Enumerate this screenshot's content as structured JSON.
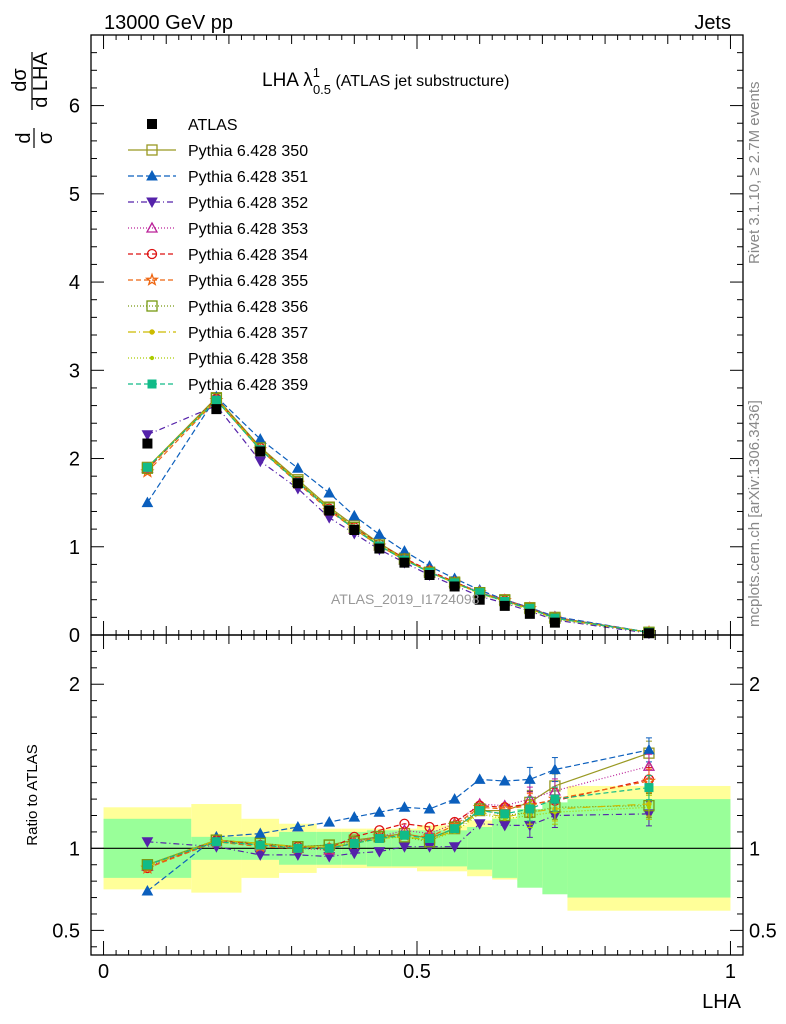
{
  "header": {
    "left": "13000 GeV pp",
    "right": "Jets"
  },
  "side_labels": {
    "rivet": "Rivet 3.1.10, ≥ 2.7M events",
    "mcplots": "mcplots.cern.ch [arXiv:1306.3436]"
  },
  "watermark": "ATLAS_2019_I1724098",
  "chart_data": {
    "type": "scatter",
    "title": {
      "main": "LHA λ",
      "sup": "1",
      "sub": "0.5",
      "rest": " (ATLAS jet substructure)"
    },
    "xlabel": "LHA",
    "ylabel": {
      "pre": "d",
      "pre_den": "σ",
      "num": "dσ",
      "den": "d LHA"
    },
    "ratio_ylabel": "Ratio to ATLAS",
    "xlim": [
      -0.02,
      1.02
    ],
    "ylim": [
      0,
      6.8
    ],
    "ratio_ylim": [
      0.35,
      2.3
    ],
    "x_ticks": [
      "0",
      "0.5",
      "1"
    ],
    "x_tick_values": [
      0,
      0.5,
      1
    ],
    "y_ticks": [
      "0",
      "1",
      "2",
      "3",
      "4",
      "5",
      "6"
    ],
    "y_tick_values": [
      0,
      1,
      2,
      3,
      4,
      5,
      6
    ],
    "ratio_ticks": [
      "0.5",
      "1",
      "2"
    ],
    "ratio_tick_values": [
      0.5,
      1,
      2
    ],
    "x": [
      0.07,
      0.18,
      0.25,
      0.31,
      0.36,
      0.4,
      0.44,
      0.48,
      0.52,
      0.56,
      0.6,
      0.64,
      0.68,
      0.72,
      0.87
    ],
    "bin_edges": [
      0.0,
      0.14,
      0.22,
      0.28,
      0.34,
      0.38,
      0.42,
      0.46,
      0.5,
      0.54,
      0.58,
      0.62,
      0.66,
      0.7,
      0.74,
      1.0
    ],
    "data": {
      "name": "ATLAS",
      "values": [
        2.17,
        2.56,
        2.08,
        1.72,
        1.41,
        1.19,
        0.98,
        0.82,
        0.68,
        0.55,
        0.4,
        0.33,
        0.24,
        0.14,
        0.02
      ]
    },
    "uncertainty_bands": {
      "inner": [
        0.18,
        0.07,
        0.07,
        0.1,
        0.1,
        0.1,
        0.11,
        0.11,
        0.11,
        0.11,
        0.13,
        0.18,
        0.24,
        0.28,
        0.3
      ],
      "outer": [
        0.25,
        0.27,
        0.18,
        0.15,
        0.12,
        0.12,
        0.12,
        0.12,
        0.14,
        0.14,
        0.17,
        0.19,
        0.2,
        0.23,
        0.38
      ],
      "inner_color": "#99ff99",
      "outer_color": "#ffff99"
    },
    "series": [
      {
        "name": "Pythia 6.428 350",
        "color": "#999922",
        "marker": "square-open",
        "dash": "solid",
        "values": [
          1.9,
          2.69,
          2.13,
          1.76,
          1.45,
          1.24,
          1.04,
          0.87,
          0.71,
          0.6,
          0.48,
          0.4,
          0.31,
          0.2,
          0.03
        ],
        "ratio": [
          0.9,
          1.05,
          1.03,
          1.01,
          1.02,
          1.05,
          1.07,
          1.09,
          1.06,
          1.12,
          1.23,
          1.23,
          1.28,
          1.38,
          1.58
        ]
      },
      {
        "name": "Pythia 6.428 351",
        "color": "#0b5fbd",
        "marker": "triangle-up",
        "dash": "6,3",
        "values": [
          1.5,
          2.7,
          2.22,
          1.89,
          1.61,
          1.35,
          1.14,
          0.95,
          0.78,
          0.64,
          0.51,
          0.4,
          0.31,
          0.21,
          0.03
        ],
        "ratio": [
          0.74,
          1.07,
          1.09,
          1.13,
          1.16,
          1.19,
          1.22,
          1.25,
          1.24,
          1.3,
          1.42,
          1.41,
          1.42,
          1.48,
          1.6
        ]
      },
      {
        "name": "Pythia 6.428 352",
        "color": "#5522aa",
        "marker": "triangle-down",
        "dash": "6,3,1,3",
        "values": [
          2.27,
          2.6,
          1.97,
          1.66,
          1.33,
          1.15,
          0.97,
          0.82,
          0.68,
          0.56,
          0.44,
          0.36,
          0.27,
          0.17,
          0.02
        ],
        "ratio": [
          1.04,
          1.01,
          0.96,
          0.96,
          0.95,
          0.97,
          0.98,
          1.01,
          1.01,
          1.01,
          1.15,
          1.14,
          1.14,
          1.2,
          1.21
        ]
      },
      {
        "name": "Pythia 6.428 353",
        "color": "#bb2299",
        "marker": "triangle-up-open",
        "dash": "1,2",
        "values": [
          1.89,
          2.67,
          2.1,
          1.73,
          1.42,
          1.2,
          1.01,
          0.85,
          0.72,
          0.6,
          0.49,
          0.4,
          0.31,
          0.2,
          0.03
        ],
        "ratio": [
          0.89,
          1.04,
          1.02,
          1.0,
          0.99,
          1.04,
          1.07,
          1.11,
          1.09,
          1.15,
          1.27,
          1.26,
          1.3,
          1.35,
          1.5
        ]
      },
      {
        "name": "Pythia 6.428 354",
        "color": "#dd1111",
        "marker": "circle-open",
        "dash": "5,3",
        "values": [
          1.88,
          2.68,
          2.12,
          1.74,
          1.43,
          1.22,
          1.03,
          0.87,
          0.73,
          0.6,
          0.48,
          0.39,
          0.3,
          0.19,
          0.03
        ],
        "ratio": [
          0.88,
          1.05,
          1.02,
          1.01,
          1.0,
          1.07,
          1.11,
          1.15,
          1.13,
          1.16,
          1.26,
          1.25,
          1.27,
          1.29,
          1.42
        ]
      },
      {
        "name": "Pythia 6.428 355",
        "color": "#ee6611",
        "marker": "star-open",
        "dash": "5,3",
        "values": [
          1.85,
          2.66,
          2.1,
          1.72,
          1.41,
          1.2,
          1.01,
          0.85,
          0.72,
          0.59,
          0.48,
          0.39,
          0.3,
          0.19,
          0.03
        ],
        "ratio": [
          0.88,
          1.04,
          1.01,
          1.0,
          1.0,
          1.03,
          1.07,
          1.08,
          1.07,
          1.14,
          1.25,
          1.24,
          1.26,
          1.3,
          1.41
        ]
      },
      {
        "name": "Pythia 6.428 356",
        "color": "#779911",
        "marker": "square-open",
        "dash": "1,2",
        "values": [
          1.89,
          2.68,
          2.12,
          1.74,
          1.44,
          1.22,
          1.02,
          0.86,
          0.71,
          0.59,
          0.48,
          0.39,
          0.3,
          0.19,
          0.03
        ],
        "ratio": [
          0.9,
          1.05,
          1.03,
          1.01,
          1.02,
          1.04,
          1.07,
          1.07,
          1.04,
          1.13,
          1.24,
          1.2,
          1.22,
          1.25,
          1.26
        ]
      },
      {
        "name": "Pythia 6.428 357",
        "color": "#ccbb00",
        "marker": "dot",
        "dash": "8,3,1,3",
        "values": [
          1.89,
          2.67,
          2.11,
          1.74,
          1.43,
          1.21,
          1.02,
          0.86,
          0.71,
          0.59,
          0.47,
          0.38,
          0.29,
          0.19,
          0.03
        ],
        "ratio": [
          0.89,
          1.05,
          1.03,
          1.01,
          1.01,
          1.03,
          1.06,
          1.07,
          1.05,
          1.11,
          1.22,
          1.19,
          1.22,
          1.24,
          1.27
        ]
      },
      {
        "name": "Pythia 6.428 358",
        "color": "#aacc00",
        "marker": "dot-small",
        "dash": "1,2",
        "values": [
          1.9,
          2.67,
          2.11,
          1.74,
          1.43,
          1.21,
          1.02,
          0.86,
          0.71,
          0.59,
          0.47,
          0.38,
          0.29,
          0.18,
          0.03
        ],
        "ratio": [
          0.9,
          1.04,
          1.02,
          1.01,
          1.01,
          1.03,
          1.06,
          1.07,
          1.05,
          1.1,
          1.21,
          1.18,
          1.2,
          1.22,
          1.25
        ]
      },
      {
        "name": "Pythia 6.428 359",
        "color": "#11bb88",
        "marker": "square-filled",
        "dash": "5,3",
        "values": [
          1.9,
          2.66,
          2.1,
          1.73,
          1.42,
          1.2,
          1.01,
          0.85,
          0.71,
          0.59,
          0.48,
          0.38,
          0.3,
          0.19,
          0.03
        ],
        "ratio": [
          0.9,
          1.04,
          1.02,
          1.0,
          1.0,
          1.03,
          1.06,
          1.08,
          1.06,
          1.12,
          1.23,
          1.21,
          1.24,
          1.3,
          1.37
        ]
      }
    ],
    "legend_position": "top-left",
    "grid": false
  }
}
